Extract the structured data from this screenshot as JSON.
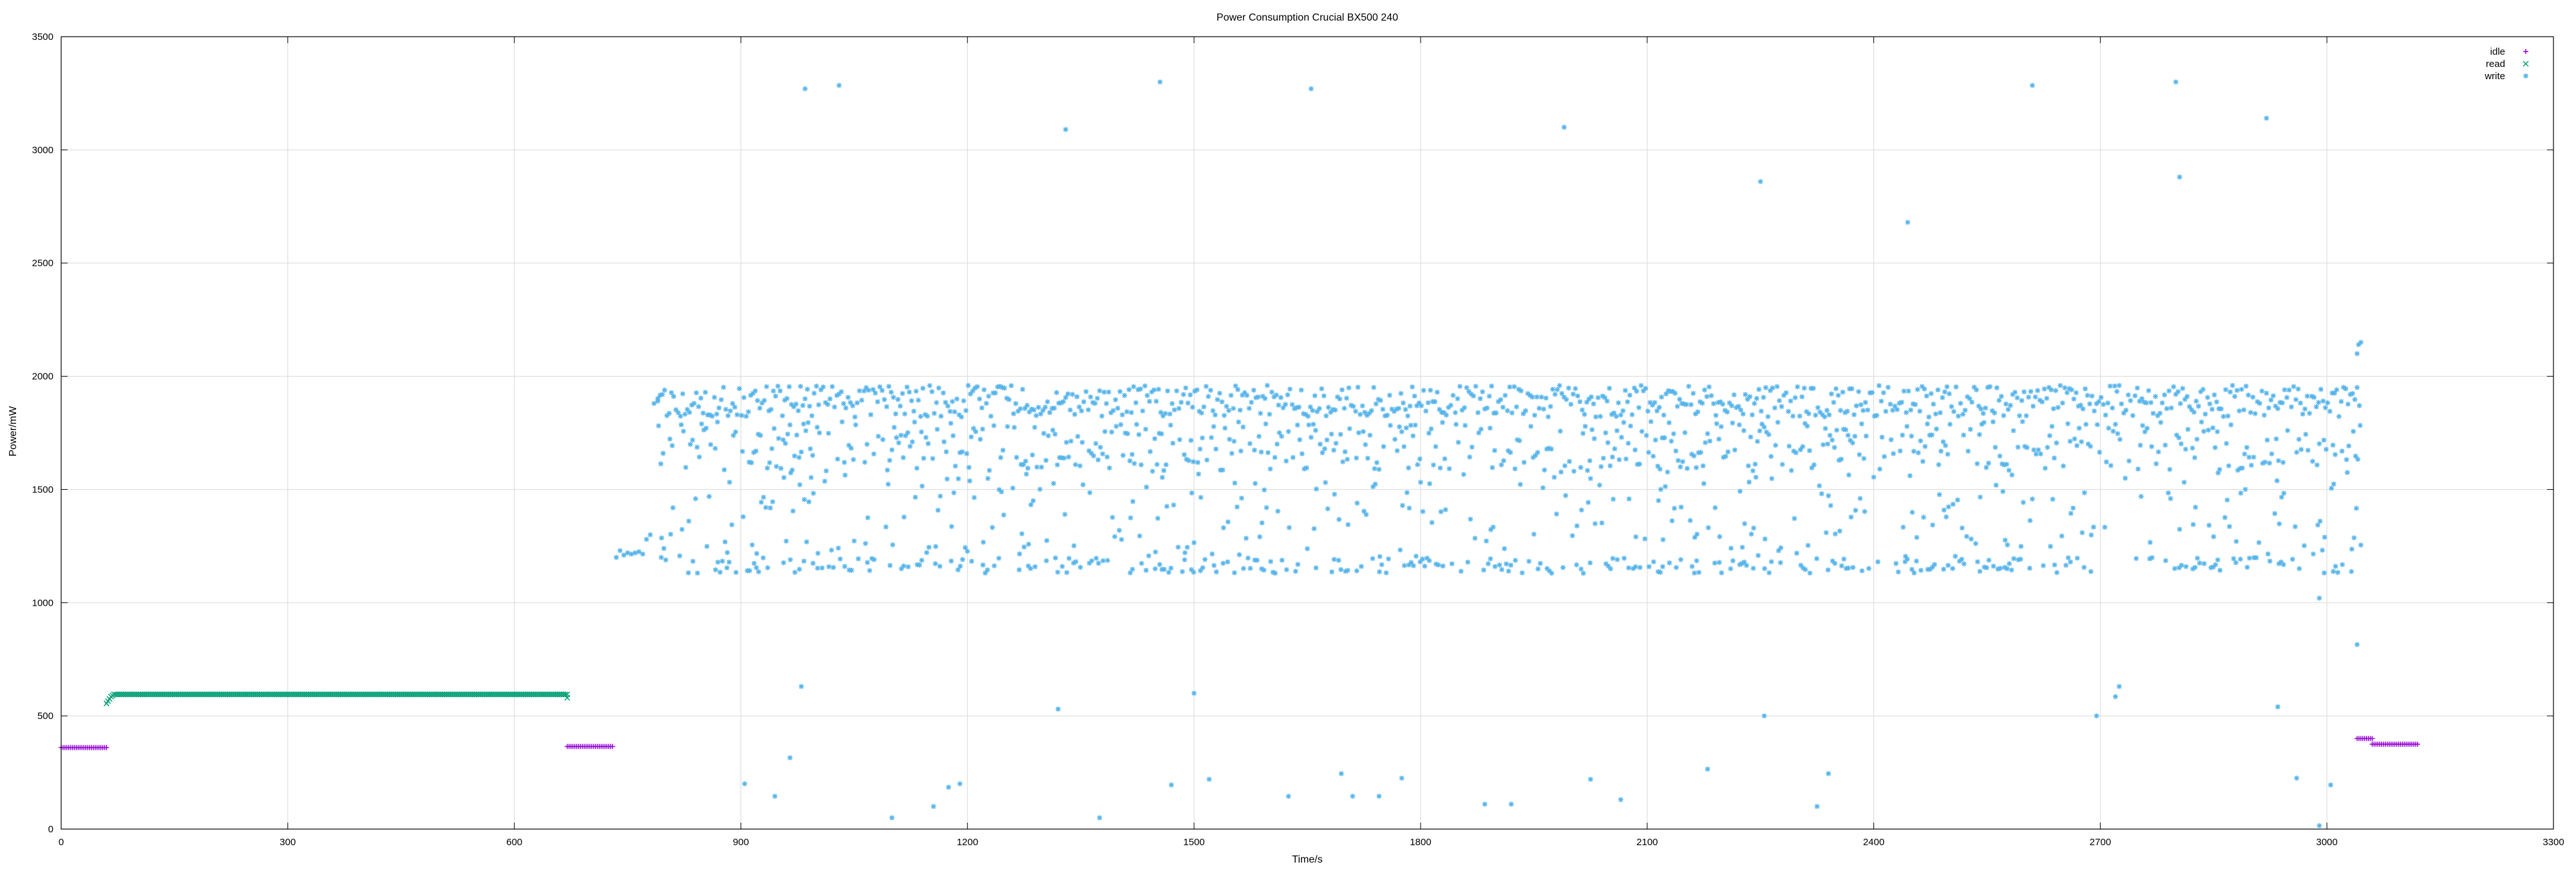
{
  "chart_data": {
    "type": "scatter",
    "title": "Power Consumption Crucial BX500 240",
    "xlabel": "Time/s",
    "ylabel": "Power/mW",
    "xlim": [
      0,
      3300
    ],
    "ylim": [
      0,
      3500
    ],
    "xticks": [
      0,
      300,
      600,
      900,
      1200,
      1500,
      1800,
      2100,
      2400,
      2700,
      3000,
      3300
    ],
    "yticks": [
      0,
      500,
      1000,
      1500,
      2000,
      2500,
      3000,
      3500
    ],
    "grid": true,
    "legend_position": "top-right",
    "series": [
      {
        "name": "idle",
        "marker": "+",
        "color": "#9400d3",
        "segments": [
          {
            "x_start": 0,
            "x_end": 60,
            "y": 360
          },
          {
            "x_start": 670,
            "x_end": 730,
            "y": 365
          },
          {
            "x_start": 3040,
            "x_end": 3060,
            "y": 400
          },
          {
            "x_start": 3060,
            "x_end": 3120,
            "y": 375
          }
        ]
      },
      {
        "name": "read",
        "marker": "x",
        "color": "#009e73",
        "segments": [
          {
            "x_start": 70,
            "x_end": 670,
            "y": 595
          }
        ],
        "points": [
          [
            60,
            555
          ],
          [
            62,
            565
          ],
          [
            64,
            575
          ],
          [
            66,
            585
          ],
          [
            68,
            590
          ],
          [
            670,
            580
          ]
        ]
      },
      {
        "name": "write",
        "marker": "*",
        "color": "#56b4e9",
        "band_x_range": [
          735,
          3045
        ],
        "bands": [
          {
            "y_low": 1820,
            "y_high": 1960
          },
          {
            "y_low": 1580,
            "y_high": 1800
          },
          {
            "y_low": 1200,
            "y_high": 1580
          },
          {
            "y_low": 1130,
            "y_high": 1200
          }
        ],
        "initial_segment": [
          {
            "x": 735,
            "y": 1200
          },
          {
            "x": 740,
            "y": 1230
          },
          {
            "x": 745,
            "y": 1210
          },
          {
            "x": 750,
            "y": 1220
          },
          {
            "x": 755,
            "y": 1215
          },
          {
            "x": 760,
            "y": 1220
          },
          {
            "x": 765,
            "y": 1225
          },
          {
            "x": 770,
            "y": 1215
          },
          {
            "x": 775,
            "y": 1280
          },
          {
            "x": 780,
            "y": 1300
          },
          {
            "x": 785,
            "y": 1880
          },
          {
            "x": 790,
            "y": 1890
          }
        ],
        "outliers": [
          [
            985,
            3270
          ],
          [
            1030,
            3285
          ],
          [
            1330,
            3090
          ],
          [
            1455,
            3300
          ],
          [
            1655,
            3270
          ],
          [
            1990,
            3100
          ],
          [
            2250,
            2860
          ],
          [
            2445,
            2680
          ],
          [
            2610,
            3285
          ],
          [
            2800,
            3300
          ],
          [
            2805,
            2880
          ],
          [
            2920,
            3140
          ],
          [
            980,
            630
          ],
          [
            1500,
            600
          ],
          [
            1320,
            530
          ],
          [
            2255,
            500
          ],
          [
            2695,
            500
          ],
          [
            2720,
            585
          ],
          [
            2725,
            630
          ],
          [
            2935,
            540
          ],
          [
            2990,
            1020
          ],
          [
            3040,
            815
          ],
          [
            3040,
            2100
          ],
          [
            3042,
            2140
          ],
          [
            3045,
            2150
          ],
          [
            905,
            200
          ],
          [
            945,
            145
          ],
          [
            965,
            315
          ],
          [
            1100,
            50
          ],
          [
            1155,
            100
          ],
          [
            1175,
            185
          ],
          [
            1190,
            200
          ],
          [
            1375,
            50
          ],
          [
            1470,
            195
          ],
          [
            1520,
            220
          ],
          [
            1625,
            145
          ],
          [
            1695,
            245
          ],
          [
            1710,
            145
          ],
          [
            1745,
            145
          ],
          [
            1775,
            225
          ],
          [
            1885,
            110
          ],
          [
            1920,
            110
          ],
          [
            2025,
            220
          ],
          [
            2065,
            130
          ],
          [
            2180,
            265
          ],
          [
            2325,
            100
          ],
          [
            2340,
            245
          ],
          [
            2990,
            15
          ],
          [
            3005,
            195
          ],
          [
            2960,
            225
          ]
        ]
      }
    ]
  }
}
